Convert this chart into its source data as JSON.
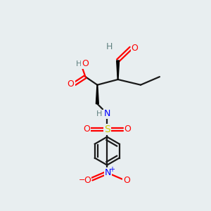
{
  "bg_color": "#e8eef0",
  "atom_colors": {
    "C": "#000000",
    "H": "#5f8080",
    "O": "#ff0000",
    "N": "#0000ff",
    "S": "#cccc00"
  },
  "bond_color": "#1a1a1a",
  "bond_width": 1.6
}
